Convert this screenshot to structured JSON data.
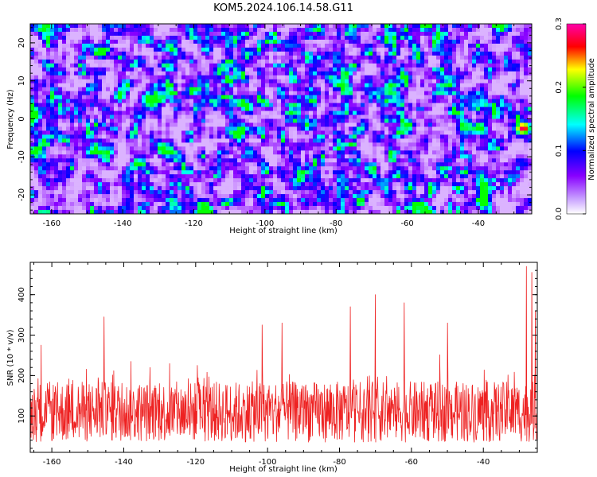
{
  "title": "KOM5.2024.106.14.58.G11",
  "colors": {
    "snr_line": "#ee2222",
    "colormap": [
      "#ffffff",
      "#8800ff",
      "#0000ff",
      "#00ffff",
      "#00ff00",
      "#ffff00",
      "#ff0000",
      "#ff00aa"
    ]
  },
  "chart_data": [
    {
      "type": "heatmap",
      "xlabel": "Height of straight line (km)",
      "ylabel": "Frequency (Hz)",
      "xlim": [
        -166,
        -25
      ],
      "ylim": [
        -25,
        25
      ],
      "xticks": [
        -160,
        -140,
        -120,
        -100,
        -80,
        -60,
        -40
      ],
      "yticks": [
        -20,
        -10,
        0,
        10,
        20
      ],
      "colorbar": {
        "label": "Normalized spectral amplitude",
        "range": [
          0.0,
          0.3
        ],
        "ticks": [
          0.0,
          0.1,
          0.2,
          0.3
        ]
      },
      "peak": {
        "x": -27.5,
        "y": -2.5,
        "value": 0.3
      }
    },
    {
      "type": "line",
      "xlabel": "Height of straight line (km)",
      "ylabel": "SNR (10 * v/v)",
      "xlim": [
        -166,
        -25
      ],
      "ylim": [
        10,
        480
      ],
      "xticks": [
        -160,
        -140,
        -120,
        -100,
        -80,
        -60,
        -40
      ],
      "yticks": [
        100,
        200,
        300,
        400
      ],
      "series": [
        {
          "baseline": 110,
          "notable_peaks": [
            {
              "x": -163,
              "y": 275
            },
            {
              "x": -145.5,
              "y": 345
            },
            {
              "x": -101.5,
              "y": 325
            },
            {
              "x": -96,
              "y": 330
            },
            {
              "x": -77,
              "y": 370
            },
            {
              "x": -70,
              "y": 400
            },
            {
              "x": -62,
              "y": 380
            },
            {
              "x": -50,
              "y": 330
            },
            {
              "x": -28,
              "y": 470
            },
            {
              "x": -26.5,
              "y": 455
            },
            {
              "x": -25.5,
              "y": 360
            }
          ]
        }
      ]
    }
  ]
}
